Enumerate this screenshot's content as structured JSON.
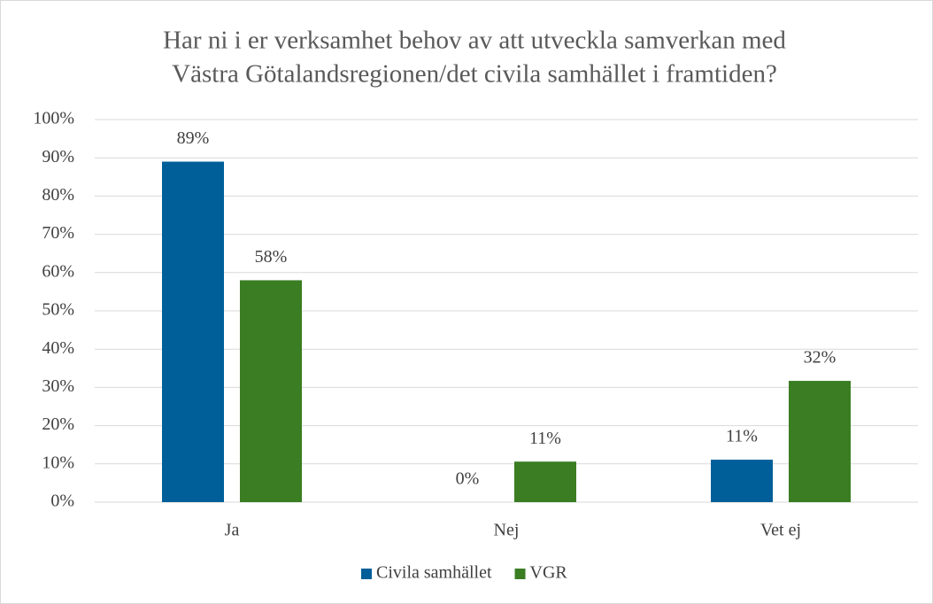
{
  "chart_data": {
    "type": "bar",
    "title": [
      "Har ni i er verksamhet behov av att utveckla samverkan med",
      "Västra Götalandsregionen/det civila samhället i framtiden?"
    ],
    "categories": [
      "Ja",
      "Nej",
      "Vet ej"
    ],
    "series": [
      {
        "name": "Civila samhället",
        "color": "#005f99",
        "values": [
          89,
          0,
          11.1
        ],
        "value_labels": [
          "89%",
          "0%",
          "11%"
        ]
      },
      {
        "name": "VGR",
        "color": "#3a7d22",
        "values": [
          58,
          10.6,
          31.7
        ],
        "value_labels": [
          "58%",
          "11%",
          "32%"
        ]
      }
    ],
    "ylim": [
      0,
      100
    ],
    "yticks": [
      {
        "value": 0,
        "label": "0%"
      },
      {
        "value": 10,
        "label": "10%"
      },
      {
        "value": 20,
        "label": "20%"
      },
      {
        "value": 30,
        "label": "30%"
      },
      {
        "value": 40,
        "label": "40%"
      },
      {
        "value": 50,
        "label": "50%"
      },
      {
        "value": 60,
        "label": "60%"
      },
      {
        "value": 70,
        "label": "70%"
      },
      {
        "value": 80,
        "label": "80%"
      },
      {
        "value": 90,
        "label": "90%"
      },
      {
        "value": 100,
        "label": "100%"
      }
    ],
    "grid": true,
    "legend": "bottom"
  }
}
